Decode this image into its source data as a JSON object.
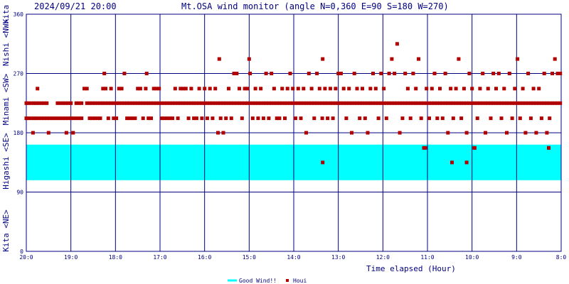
{
  "header": {
    "timestamp": "2024/09/21 20:00",
    "title": "Mt.OSA wind monitor (angle N=0,360 E=90 S=180 W=270)"
  },
  "colors": {
    "background": "#ffffff",
    "grid": "#000080",
    "text": "#000080",
    "good_wind_band": "#00ffff",
    "houi_marker": "#b00000"
  },
  "chart_data": {
    "type": "scatter",
    "title": "Mt.OSA wind monitor (angle N=0,360 E=90 S=180 W=270)",
    "xlabel": "Time elapsed (Hour)",
    "ylabel": "",
    "x_ticks": [
      "20:0",
      "19:0",
      "18:0",
      "17:0",
      "16:0",
      "15:0",
      "14:0",
      "13:0",
      "12:0",
      "11:0",
      "10:0",
      "9:0",
      "8:0"
    ],
    "x_hours_ago": [
      0,
      1,
      2,
      3,
      4,
      5,
      6,
      7,
      8,
      9,
      10,
      11,
      12
    ],
    "y_ticks": [
      0,
      90,
      180,
      270,
      360
    ],
    "ylim": [
      0,
      360
    ],
    "y_direction_labels": [
      "Kita <NE>",
      "Higashi <SE>",
      "Minami <SW>",
      "Nishi <NW>",
      "Kita"
    ],
    "grid": true,
    "good_wind": {
      "name": "Good Wind!!",
      "from": 108,
      "to": 162
    },
    "legend": [
      {
        "name": "Good Wind!!",
        "marker": "line",
        "color": "#00ffff"
      },
      {
        "name": "Houi",
        "marker": "square",
        "color": "#b00000"
      }
    ],
    "houi": [
      [
        0.0,
        225
      ],
      [
        0.0,
        202
      ],
      [
        0.05,
        225
      ],
      [
        0.05,
        202
      ],
      [
        0.11,
        225
      ],
      [
        0.11,
        202
      ],
      [
        0.15,
        180
      ],
      [
        0.17,
        225
      ],
      [
        0.17,
        202
      ],
      [
        0.22,
        225
      ],
      [
        0.22,
        202
      ],
      [
        0.25,
        247
      ],
      [
        0.28,
        225
      ],
      [
        0.28,
        202
      ],
      [
        0.34,
        225
      ],
      [
        0.34,
        202
      ],
      [
        0.4,
        225
      ],
      [
        0.4,
        202
      ],
      [
        0.46,
        225
      ],
      [
        0.46,
        202
      ],
      [
        0.5,
        180
      ],
      [
        0.52,
        202
      ],
      [
        0.58,
        202
      ],
      [
        0.64,
        202
      ],
      [
        0.7,
        225
      ],
      [
        0.7,
        202
      ],
      [
        0.76,
        225
      ],
      [
        0.76,
        202
      ],
      [
        0.82,
        225
      ],
      [
        0.82,
        202
      ],
      [
        0.88,
        225
      ],
      [
        0.88,
        202
      ],
      [
        0.9,
        180
      ],
      [
        0.94,
        225
      ],
      [
        0.94,
        202
      ],
      [
        1.0,
        225
      ],
      [
        1.0,
        202
      ],
      [
        1.05,
        180
      ],
      [
        1.06,
        202
      ],
      [
        1.12,
        225
      ],
      [
        1.12,
        202
      ],
      [
        1.18,
        225
      ],
      [
        1.18,
        202
      ],
      [
        1.24,
        225
      ],
      [
        1.24,
        202
      ],
      [
        1.3,
        247
      ],
      [
        1.36,
        225
      ],
      [
        1.36,
        247
      ],
      [
        1.42,
        225
      ],
      [
        1.42,
        202
      ],
      [
        1.48,
        225
      ],
      [
        1.48,
        202
      ],
      [
        1.54,
        225
      ],
      [
        1.54,
        202
      ],
      [
        1.6,
        225
      ],
      [
        1.6,
        202
      ],
      [
        1.66,
        225
      ],
      [
        1.66,
        202
      ],
      [
        1.72,
        225
      ],
      [
        1.72,
        247
      ],
      [
        1.75,
        270
      ],
      [
        1.78,
        225
      ],
      [
        1.78,
        247
      ],
      [
        1.84,
        225
      ],
      [
        1.84,
        202
      ],
      [
        1.9,
        225
      ],
      [
        1.9,
        247
      ],
      [
        1.96,
        225
      ],
      [
        1.96,
        202
      ],
      [
        2.02,
        225
      ],
      [
        2.02,
        202
      ],
      [
        2.08,
        225
      ],
      [
        2.08,
        247
      ],
      [
        2.14,
        225
      ],
      [
        2.14,
        247
      ],
      [
        2.2,
        225
      ],
      [
        2.2,
        270
      ],
      [
        2.26,
        225
      ],
      [
        2.26,
        202
      ],
      [
        2.32,
        225
      ],
      [
        2.32,
        202
      ],
      [
        2.38,
        225
      ],
      [
        2.38,
        202
      ],
      [
        2.44,
        225
      ],
      [
        2.44,
        202
      ],
      [
        2.5,
        225
      ],
      [
        2.5,
        247
      ],
      [
        2.56,
        225
      ],
      [
        2.56,
        247
      ],
      [
        2.62,
        225
      ],
      [
        2.62,
        202
      ],
      [
        2.68,
        225
      ],
      [
        2.68,
        247
      ],
      [
        2.7,
        270
      ],
      [
        2.74,
        225
      ],
      [
        2.74,
        202
      ],
      [
        2.8,
        225
      ],
      [
        2.8,
        202
      ],
      [
        2.86,
        225
      ],
      [
        2.86,
        247
      ],
      [
        2.92,
        225
      ],
      [
        2.92,
        247
      ],
      [
        2.98,
        225
      ],
      [
        2.98,
        247
      ],
      [
        3.04,
        225
      ],
      [
        3.04,
        202
      ],
      [
        3.1,
        225
      ],
      [
        3.1,
        202
      ],
      [
        3.16,
        225
      ],
      [
        3.16,
        202
      ],
      [
        3.22,
        225
      ],
      [
        3.22,
        202
      ],
      [
        3.28,
        225
      ],
      [
        3.28,
        202
      ],
      [
        3.34,
        225
      ],
      [
        3.34,
        247
      ],
      [
        3.4,
        225
      ],
      [
        3.4,
        202
      ],
      [
        3.46,
        225
      ],
      [
        3.46,
        247
      ],
      [
        3.52,
        225
      ],
      [
        3.52,
        247
      ],
      [
        3.58,
        225
      ],
      [
        3.58,
        247
      ],
      [
        3.64,
        225
      ],
      [
        3.64,
        202
      ],
      [
        3.7,
        225
      ],
      [
        3.7,
        247
      ],
      [
        3.76,
        225
      ],
      [
        3.76,
        202
      ],
      [
        3.82,
        225
      ],
      [
        3.82,
        202
      ],
      [
        3.88,
        225
      ],
      [
        3.88,
        247
      ],
      [
        3.94,
        225
      ],
      [
        3.94,
        202
      ],
      [
        4.0,
        225
      ],
      [
        4.0,
        247
      ],
      [
        4.06,
        225
      ],
      [
        4.06,
        202
      ],
      [
        4.12,
        225
      ],
      [
        4.12,
        247
      ],
      [
        4.18,
        225
      ],
      [
        4.18,
        202
      ],
      [
        4.24,
        225
      ],
      [
        4.24,
        247
      ],
      [
        4.3,
        225
      ],
      [
        4.3,
        180
      ],
      [
        4.33,
        292
      ],
      [
        4.36,
        225
      ],
      [
        4.36,
        202
      ],
      [
        4.42,
        225
      ],
      [
        4.42,
        180
      ],
      [
        4.48,
        225
      ],
      [
        4.48,
        202
      ],
      [
        4.54,
        225
      ],
      [
        4.54,
        247
      ],
      [
        4.6,
        225
      ],
      [
        4.6,
        202
      ],
      [
        4.66,
        225
      ],
      [
        4.66,
        270
      ],
      [
        4.72,
        225
      ],
      [
        4.72,
        270
      ],
      [
        4.78,
        225
      ],
      [
        4.78,
        247
      ],
      [
        4.84,
        225
      ],
      [
        4.84,
        202
      ],
      [
        4.9,
        225
      ],
      [
        4.9,
        247
      ],
      [
        4.96,
        225
      ],
      [
        4.96,
        247
      ],
      [
        5.0,
        292
      ],
      [
        5.02,
        225
      ],
      [
        5.02,
        270
      ],
      [
        5.08,
        225
      ],
      [
        5.08,
        202
      ],
      [
        5.14,
        225
      ],
      [
        5.14,
        247
      ],
      [
        5.2,
        225
      ],
      [
        5.2,
        202
      ],
      [
        5.26,
        225
      ],
      [
        5.26,
        247
      ],
      [
        5.32,
        225
      ],
      [
        5.32,
        202
      ],
      [
        5.38,
        225
      ],
      [
        5.38,
        270
      ],
      [
        5.44,
        225
      ],
      [
        5.44,
        202
      ],
      [
        5.5,
        225
      ],
      [
        5.5,
        270
      ],
      [
        5.56,
        225
      ],
      [
        5.56,
        247
      ],
      [
        5.62,
        225
      ],
      [
        5.62,
        202
      ],
      [
        5.68,
        225
      ],
      [
        5.68,
        202
      ],
      [
        5.74,
        225
      ],
      [
        5.74,
        247
      ],
      [
        5.8,
        225
      ],
      [
        5.8,
        202
      ],
      [
        5.86,
        225
      ],
      [
        5.86,
        247
      ],
      [
        5.92,
        225
      ],
      [
        5.92,
        270
      ],
      [
        5.98,
        225
      ],
      [
        5.98,
        247
      ],
      [
        6.04,
        225
      ],
      [
        6.04,
        202
      ],
      [
        6.1,
        225
      ],
      [
        6.1,
        247
      ],
      [
        6.16,
        225
      ],
      [
        6.16,
        202
      ],
      [
        6.22,
        225
      ],
      [
        6.22,
        247
      ],
      [
        6.28,
        225
      ],
      [
        6.28,
        180
      ],
      [
        6.34,
        225
      ],
      [
        6.34,
        270
      ],
      [
        6.4,
        225
      ],
      [
        6.4,
        247
      ],
      [
        6.46,
        225
      ],
      [
        6.46,
        202
      ],
      [
        6.52,
        225
      ],
      [
        6.52,
        270
      ],
      [
        6.58,
        225
      ],
      [
        6.58,
        247
      ],
      [
        6.64,
        225
      ],
      [
        6.64,
        202
      ],
      [
        6.65,
        292
      ],
      [
        6.7,
        225
      ],
      [
        6.7,
        247
      ],
      [
        6.76,
        225
      ],
      [
        6.76,
        202
      ],
      [
        6.82,
        225
      ],
      [
        6.82,
        247
      ],
      [
        6.88,
        225
      ],
      [
        6.88,
        202
      ],
      [
        6.94,
        225
      ],
      [
        6.94,
        247
      ],
      [
        7.0,
        225
      ],
      [
        7.0,
        270
      ],
      [
        7.06,
        225
      ],
      [
        7.06,
        270
      ],
      [
        7.12,
        225
      ],
      [
        7.12,
        247
      ],
      [
        7.18,
        225
      ],
      [
        7.18,
        202
      ],
      [
        7.24,
        225
      ],
      [
        7.24,
        247
      ],
      [
        7.3,
        225
      ],
      [
        7.3,
        180
      ],
      [
        7.36,
        225
      ],
      [
        7.36,
        270
      ],
      [
        7.42,
        225
      ],
      [
        7.42,
        247
      ],
      [
        7.48,
        225
      ],
      [
        7.48,
        202
      ],
      [
        7.54,
        225
      ],
      [
        7.54,
        247
      ],
      [
        7.6,
        225
      ],
      [
        7.6,
        202
      ],
      [
        7.66,
        225
      ],
      [
        7.66,
        180
      ],
      [
        7.72,
        225
      ],
      [
        7.72,
        247
      ],
      [
        7.78,
        225
      ],
      [
        7.78,
        270
      ],
      [
        7.84,
        225
      ],
      [
        7.84,
        247
      ],
      [
        7.9,
        225
      ],
      [
        7.9,
        202
      ],
      [
        7.96,
        225
      ],
      [
        7.96,
        270
      ],
      [
        8.02,
        225
      ],
      [
        8.02,
        247
      ],
      [
        8.08,
        225
      ],
      [
        8.08,
        202
      ],
      [
        8.14,
        225
      ],
      [
        8.14,
        270
      ],
      [
        8.2,
        225
      ],
      [
        8.2,
        292
      ],
      [
        8.26,
        225
      ],
      [
        8.26,
        270
      ],
      [
        8.32,
        225
      ],
      [
        8.32,
        315
      ],
      [
        8.38,
        225
      ],
      [
        8.38,
        180
      ],
      [
        8.44,
        225
      ],
      [
        8.44,
        202
      ],
      [
        8.5,
        225
      ],
      [
        8.5,
        270
      ],
      [
        8.56,
        225
      ],
      [
        8.56,
        247
      ],
      [
        8.62,
        225
      ],
      [
        8.62,
        202
      ],
      [
        8.68,
        225
      ],
      [
        8.68,
        270
      ],
      [
        8.74,
        225
      ],
      [
        8.74,
        247
      ],
      [
        8.8,
        225
      ],
      [
        8.8,
        292
      ],
      [
        8.86,
        225
      ],
      [
        8.86,
        202
      ],
      [
        8.92,
        225
      ],
      [
        8.92,
        157
      ],
      [
        8.98,
        225
      ],
      [
        8.98,
        247
      ],
      [
        9.04,
        225
      ],
      [
        9.04,
        202
      ],
      [
        9.1,
        225
      ],
      [
        9.1,
        247
      ],
      [
        9.16,
        225
      ],
      [
        9.16,
        270
      ],
      [
        9.22,
        225
      ],
      [
        9.22,
        202
      ],
      [
        9.28,
        225
      ],
      [
        9.28,
        247
      ],
      [
        9.34,
        225
      ],
      [
        9.34,
        202
      ],
      [
        9.4,
        225
      ],
      [
        9.4,
        270
      ],
      [
        9.46,
        225
      ],
      [
        9.46,
        180
      ],
      [
        9.52,
        225
      ],
      [
        9.52,
        247
      ],
      [
        9.58,
        225
      ],
      [
        9.58,
        202
      ],
      [
        9.64,
        225
      ],
      [
        9.64,
        247
      ],
      [
        9.7,
        225
      ],
      [
        9.7,
        292
      ],
      [
        9.76,
        225
      ],
      [
        9.76,
        202
      ],
      [
        9.82,
        225
      ],
      [
        9.82,
        247
      ],
      [
        9.88,
        225
      ],
      [
        9.88,
        180
      ],
      [
        9.94,
        225
      ],
      [
        9.94,
        270
      ],
      [
        10.0,
        225
      ],
      [
        10.0,
        247
      ],
      [
        10.06,
        225
      ],
      [
        10.06,
        157
      ],
      [
        10.12,
        225
      ],
      [
        10.12,
        202
      ],
      [
        10.18,
        225
      ],
      [
        10.18,
        247
      ],
      [
        10.24,
        225
      ],
      [
        10.24,
        270
      ],
      [
        10.3,
        225
      ],
      [
        10.3,
        180
      ],
      [
        10.36,
        225
      ],
      [
        10.36,
        247
      ],
      [
        10.42,
        225
      ],
      [
        10.42,
        202
      ],
      [
        10.48,
        225
      ],
      [
        10.48,
        270
      ],
      [
        10.54,
        225
      ],
      [
        10.54,
        247
      ],
      [
        10.6,
        225
      ],
      [
        10.6,
        270
      ],
      [
        10.66,
        225
      ],
      [
        10.66,
        202
      ],
      [
        10.72,
        225
      ],
      [
        10.72,
        247
      ],
      [
        10.78,
        225
      ],
      [
        10.78,
        180
      ],
      [
        10.84,
        225
      ],
      [
        10.84,
        270
      ],
      [
        10.9,
        225
      ],
      [
        10.9,
        202
      ],
      [
        10.96,
        225
      ],
      [
        10.96,
        247
      ],
      [
        11.02,
        225
      ],
      [
        11.02,
        292
      ],
      [
        11.08,
        225
      ],
      [
        11.08,
        202
      ],
      [
        11.14,
        225
      ],
      [
        11.14,
        247
      ],
      [
        11.2,
        225
      ],
      [
        11.2,
        180
      ],
      [
        11.26,
        225
      ],
      [
        11.26,
        270
      ],
      [
        11.32,
        225
      ],
      [
        11.32,
        202
      ],
      [
        11.38,
        225
      ],
      [
        11.38,
        247
      ],
      [
        11.44,
        225
      ],
      [
        11.44,
        180
      ],
      [
        11.5,
        225
      ],
      [
        11.5,
        247
      ],
      [
        11.56,
        225
      ],
      [
        11.56,
        202
      ],
      [
        11.62,
        225
      ],
      [
        11.62,
        270
      ],
      [
        11.68,
        225
      ],
      [
        11.68,
        180
      ],
      [
        11.72,
        157
      ],
      [
        11.74,
        225
      ],
      [
        11.74,
        202
      ],
      [
        11.8,
        225
      ],
      [
        11.8,
        270
      ],
      [
        11.86,
        225
      ],
      [
        11.86,
        292
      ],
      [
        11.92,
        225
      ],
      [
        11.92,
        270
      ],
      [
        11.98,
        225
      ],
      [
        11.98,
        270
      ],
      [
        6.65,
        135
      ],
      [
        8.95,
        157
      ],
      [
        9.55,
        135
      ],
      [
        9.88,
        135
      ],
      [
        10.05,
        157
      ],
      [
        11.72,
        157
      ]
    ]
  },
  "legend_labels": {
    "good_wind": "Good Wind!!",
    "houi": "Houi"
  }
}
